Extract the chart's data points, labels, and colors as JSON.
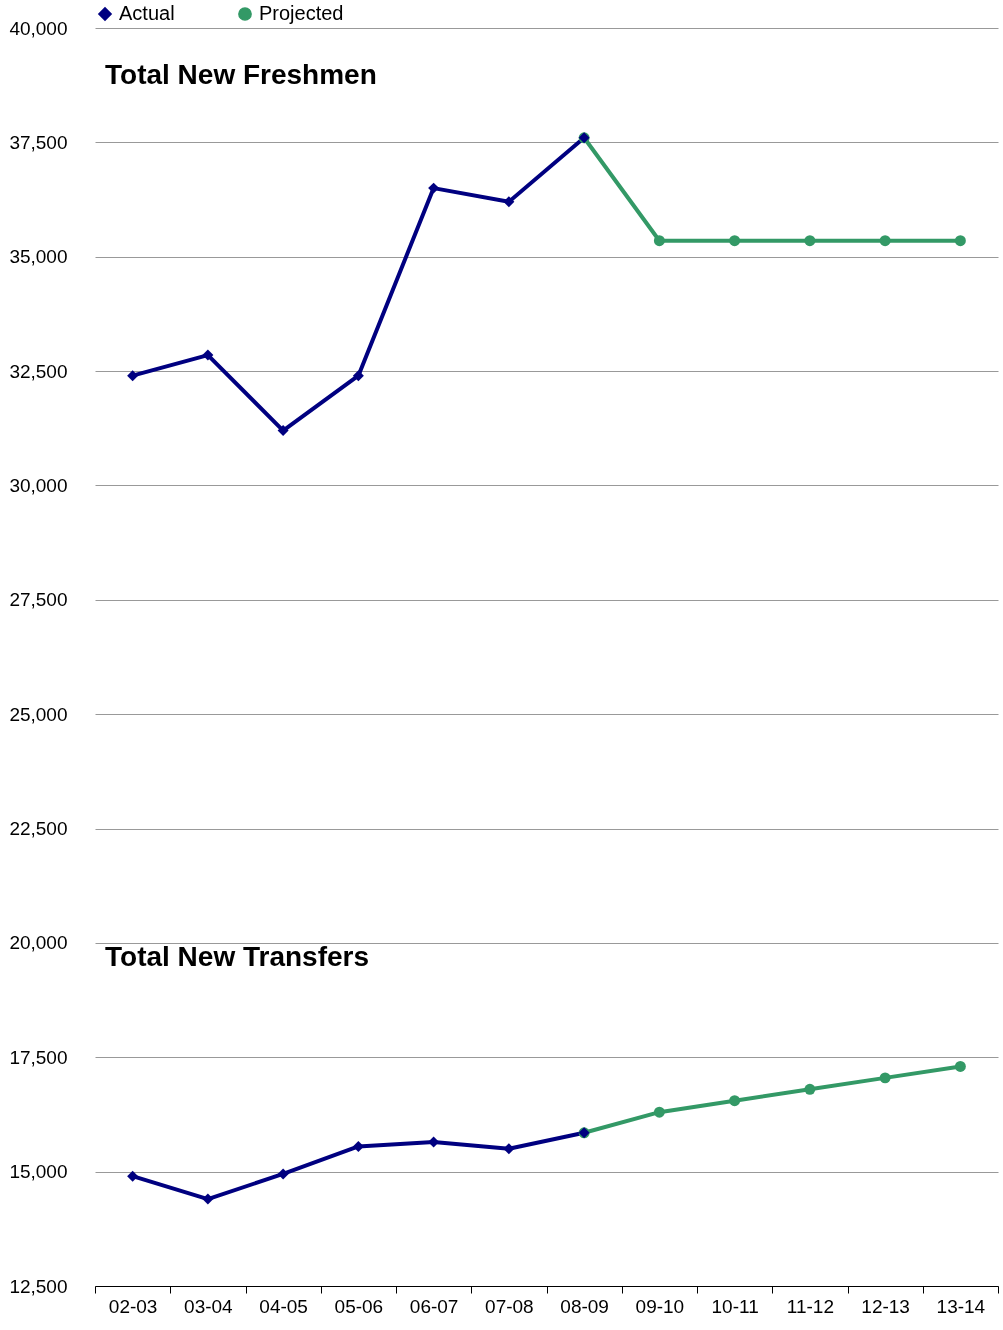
{
  "chart_data": {
    "type": "line",
    "categories": [
      "02-03",
      "03-04",
      "04-05",
      "05-06",
      "06-07",
      "07-08",
      "08-09",
      "09-10",
      "10-11",
      "11-12",
      "12-13",
      "13-14"
    ],
    "series": [
      {
        "name": "Actual",
        "color": "#000080",
        "marker": "diamond",
        "values": [
          32400,
          32850,
          31200,
          32400,
          36500,
          36200,
          37600,
          null,
          null,
          null,
          null,
          null
        ]
      },
      {
        "name": "Projected",
        "color": "#339966",
        "marker": "circle",
        "values": [
          null,
          null,
          null,
          null,
          null,
          null,
          37600,
          35350,
          35350,
          35350,
          35350,
          35350
        ]
      },
      {
        "color": "#000080",
        "marker": "diamond",
        "values": [
          14900,
          14400,
          14950,
          15550,
          15650,
          15500,
          15850,
          null,
          null,
          null,
          null,
          null
        ]
      },
      {
        "color": "#339966",
        "marker": "circle",
        "values": [
          null,
          null,
          null,
          null,
          null,
          null,
          15850,
          16300,
          16550,
          16800,
          17050,
          17300
        ]
      }
    ],
    "ylim": [
      12500,
      40000
    ],
    "yticks": [
      {
        "value": 12500,
        "label": "12,500"
      },
      {
        "value": 15000,
        "label": "15,000"
      },
      {
        "value": 17500,
        "label": "17,500"
      },
      {
        "value": 20000,
        "label": "20,000"
      },
      {
        "value": 22500,
        "label": "22,500"
      },
      {
        "value": 25000,
        "label": "25,000"
      },
      {
        "value": 27500,
        "label": "27,500"
      },
      {
        "value": 30000,
        "label": "30,000"
      },
      {
        "value": 32500,
        "label": "32,500"
      },
      {
        "value": 35000,
        "label": "35,000"
      },
      {
        "value": 37500,
        "label": "37,500"
      },
      {
        "value": 40000,
        "label": "40,000"
      }
    ],
    "grid": "y",
    "legend": "top",
    "annotations": [
      "Total New Freshmen",
      "Total New Transfers"
    ]
  }
}
